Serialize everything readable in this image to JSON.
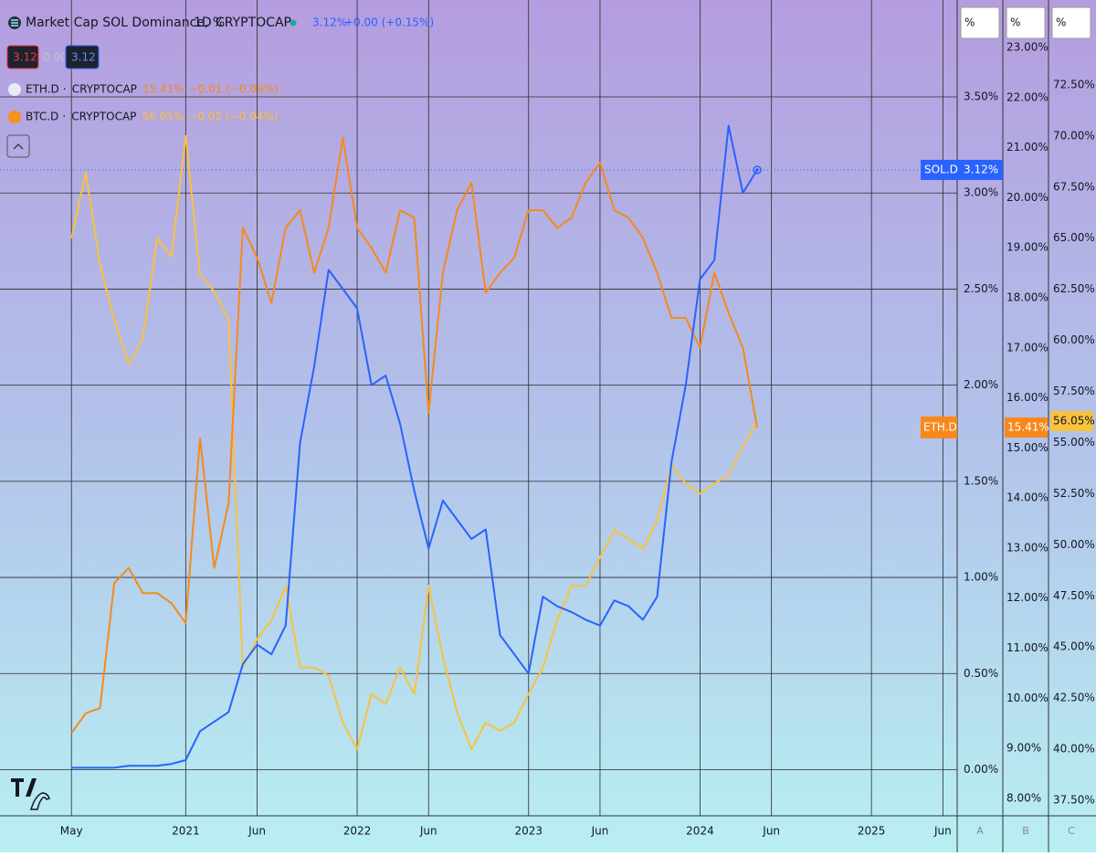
{
  "chart_data": {
    "type": "line",
    "title": "Market Cap SOL Dominance, %",
    "interval": "1D",
    "source": "CRYPTOCAP",
    "separator": "·",
    "header_boxes": [
      "3.12",
      "0.00",
      "3.12"
    ],
    "scale_units": [
      "%",
      "%",
      "%"
    ],
    "scale_ids": [
      "A",
      "B",
      "C"
    ],
    "grid": true,
    "x": [
      "2020-05",
      "2020-06",
      "2020-07",
      "2020-08",
      "2020-09",
      "2020-10",
      "2020-11",
      "2020-12",
      "2021-01",
      "2021-02",
      "2021-03",
      "2021-04",
      "2021-05",
      "2021-06",
      "2021-07",
      "2021-08",
      "2021-09",
      "2021-10",
      "2021-11",
      "2021-12",
      "2022-01",
      "2022-02",
      "2022-03",
      "2022-04",
      "2022-05",
      "2022-06",
      "2022-07",
      "2022-08",
      "2022-09",
      "2022-10",
      "2022-11",
      "2022-12",
      "2023-01",
      "2023-02",
      "2023-03",
      "2023-04",
      "2023-05",
      "2023-06",
      "2023-07",
      "2023-08",
      "2023-09",
      "2023-10",
      "2023-11",
      "2023-12",
      "2024-01",
      "2024-02",
      "2024-03",
      "2024-04",
      "2024-05"
    ],
    "xlim": [
      "2019-12",
      "2025-07"
    ],
    "xticks": [
      {
        "value": "2020-05",
        "label": "May"
      },
      {
        "value": "2021-01",
        "label": "2021"
      },
      {
        "value": "2021-06",
        "label": "Jun"
      },
      {
        "value": "2022-01",
        "label": "2022"
      },
      {
        "value": "2022-06",
        "label": "Jun"
      },
      {
        "value": "2023-01",
        "label": "2023"
      },
      {
        "value": "2023-06",
        "label": "Jun"
      },
      {
        "value": "2024-01",
        "label": "2024"
      },
      {
        "value": "2024-06",
        "label": "Jun"
      },
      {
        "value": "2025-01",
        "label": "2025"
      },
      {
        "value": "2025-06",
        "label": "Jun"
      }
    ],
    "ylim": [
      -0.24,
      3.98
    ],
    "yticks": [
      {
        "value": 0,
        "label": "0.00%"
      },
      {
        "value": 0.5,
        "label": "0.50%"
      },
      {
        "value": 1,
        "label": "1.00%"
      },
      {
        "value": 1.5,
        "label": "1.50%"
      },
      {
        "value": 2,
        "label": "2.00%"
      },
      {
        "value": 2.5,
        "label": "2.50%"
      },
      {
        "value": 3,
        "label": "3.00%"
      },
      {
        "value": 3.5,
        "label": "3.50%"
      }
    ],
    "y2lim": [
      7.65,
      23.86
    ],
    "y2ticks": [
      {
        "value": 8,
        "label": "8.00%"
      },
      {
        "value": 9,
        "label": "9.00%"
      },
      {
        "value": 10,
        "label": "10.00%"
      },
      {
        "value": 11,
        "label": "11.00%"
      },
      {
        "value": 12,
        "label": "12.00%"
      },
      {
        "value": 13,
        "label": "13.00%"
      },
      {
        "value": 14,
        "label": "14.00%"
      },
      {
        "value": 15,
        "label": "15.00%"
      },
      {
        "value": 16,
        "label": "16.00%"
      },
      {
        "value": 17,
        "label": "17.00%"
      },
      {
        "value": 18,
        "label": "18.00%"
      },
      {
        "value": 19,
        "label": "19.00%"
      },
      {
        "value": 20,
        "label": "20.00%"
      },
      {
        "value": 21,
        "label": "21.00%"
      },
      {
        "value": 22,
        "label": "22.00%"
      },
      {
        "value": 23,
        "label": "23.00%"
      }
    ],
    "y3lim": [
      36.74,
      76.43
    ],
    "y3ticks": [
      {
        "value": 37.5,
        "label": "37.50%"
      },
      {
        "value": 40,
        "label": "40.00%"
      },
      {
        "value": 42.5,
        "label": "42.50%"
      },
      {
        "value": 45,
        "label": "45.00%"
      },
      {
        "value": 47.5,
        "label": "47.50%"
      },
      {
        "value": 50,
        "label": "50.00%"
      },
      {
        "value": 52.5,
        "label": "52.50%"
      },
      {
        "value": 55,
        "label": "55.00%"
      },
      {
        "value": 57.5,
        "label": "57.50%"
      },
      {
        "value": 60,
        "label": "60.00%"
      },
      {
        "value": 62.5,
        "label": "62.50%"
      },
      {
        "value": 65,
        "label": "65.00%"
      },
      {
        "value": 67.5,
        "label": "67.50%"
      },
      {
        "value": 70,
        "label": "70.00%"
      },
      {
        "value": 72.5,
        "label": "72.50%"
      }
    ],
    "series": [
      {
        "name": "SOL.D",
        "color": "#2962ff",
        "axis": "y",
        "last": "3.12%",
        "change": "+0.00 (+0.15%)",
        "name_label": "axis",
        "values": [
          0.01,
          0.01,
          0.01,
          0.01,
          0.02,
          0.02,
          0.02,
          0.03,
          0.05,
          0.2,
          0.25,
          0.3,
          0.55,
          0.65,
          0.6,
          0.75,
          1.7,
          2.1,
          2.6,
          2.5,
          2.4,
          2.0,
          2.05,
          1.8,
          1.45,
          1.15,
          1.4,
          1.3,
          1.2,
          1.25,
          0.7,
          0.6,
          0.5,
          0.9,
          0.85,
          0.82,
          0.78,
          0.75,
          0.88,
          0.85,
          0.78,
          0.9,
          1.6,
          2.0,
          2.55,
          2.65,
          3.35,
          3.0,
          3.12
        ]
      },
      {
        "name": "ETH.D",
        "source": "CRYPTOCAP",
        "color": "#f7891b",
        "axis": "y2",
        "last": "15.41%",
        "change": "−0.01 (−0.09%)",
        "name_label": "plot",
        "values": [
          9.3,
          9.7,
          9.8,
          12.3,
          12.6,
          12.1,
          12.1,
          11.9,
          11.5,
          15.2,
          12.6,
          13.9,
          19.4,
          18.8,
          17.9,
          19.4,
          19.75,
          18.5,
          19.4,
          21.2,
          19.4,
          19.0,
          18.5,
          19.75,
          19.6,
          15.7,
          18.5,
          19.75,
          20.3,
          18.1,
          18.5,
          18.8,
          19.75,
          19.75,
          19.4,
          19.6,
          20.3,
          20.7,
          19.75,
          19.6,
          19.2,
          18.5,
          17.6,
          17.6,
          17.0,
          18.5,
          17.7,
          17.0,
          15.41
        ]
      },
      {
        "name": "BTC.D",
        "source": "CRYPTOCAP",
        "color": "#f9c23c",
        "axis": "y3",
        "last": "56.05%",
        "change": "−0.02 (−0.04%)",
        "name_label": "none",
        "values": [
          65.0,
          68.2,
          63.7,
          61.0,
          58.8,
          60.1,
          65.0,
          64.1,
          70.0,
          63.2,
          62.4,
          61.0,
          44.0,
          45.4,
          46.3,
          48.0,
          44.0,
          44.0,
          43.6,
          41.3,
          40.0,
          42.7,
          42.2,
          44.0,
          42.7,
          48.0,
          44.5,
          41.8,
          40.0,
          41.3,
          40.9,
          41.3,
          42.7,
          44.0,
          46.3,
          48.0,
          48.0,
          49.4,
          50.7,
          50.3,
          49.8,
          51.2,
          53.9,
          53.0,
          52.5,
          53.0,
          53.4,
          54.8,
          56.05
        ]
      }
    ]
  }
}
